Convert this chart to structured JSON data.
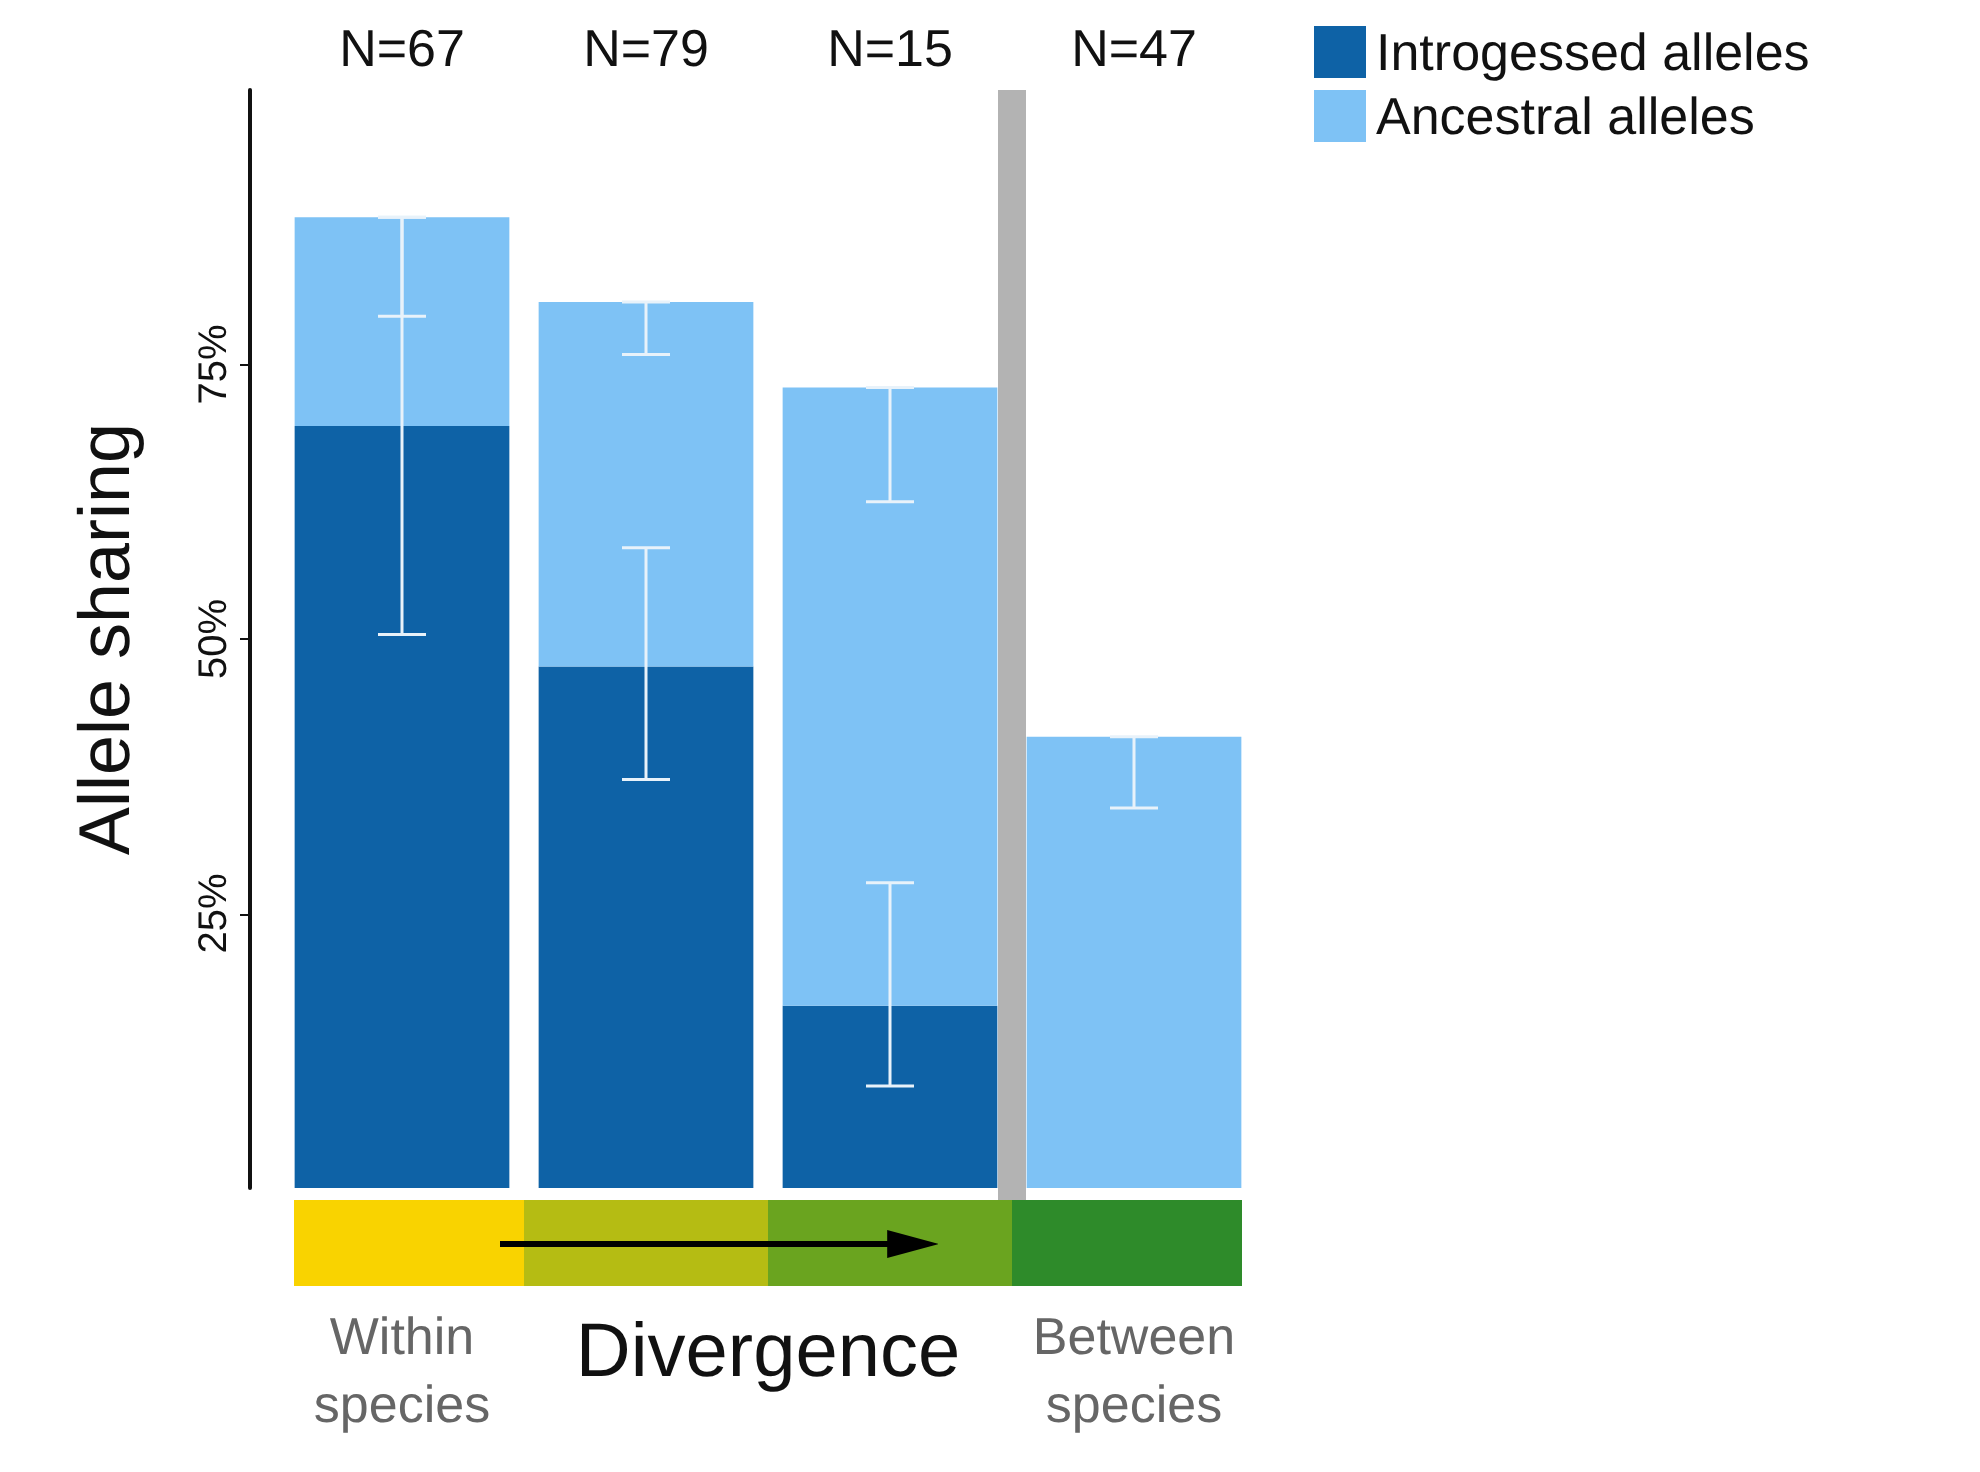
{
  "chart_data": {
    "type": "bar",
    "stacked": true,
    "categories": [
      "N=67",
      "N=79",
      "N=15",
      "N=47"
    ],
    "series": [
      {
        "name": "Introgessed alleles",
        "color": "#0e62a6",
        "values": [
          69.4,
          47.5,
          16.6,
          0
        ],
        "errors": [
          [
            50.4,
            88.4
          ],
          [
            37.2,
            58.3
          ],
          [
            9.3,
            27.8
          ],
          null
        ]
      },
      {
        "name": "Ancestral alleles",
        "color": "#7ec2f5",
        "values": [
          19.0,
          33.2,
          56.3,
          41.1
        ],
        "errors": [
          [
            79.4,
            88.4
          ],
          [
            75.9,
            80.7
          ],
          [
            62.5,
            72.9
          ],
          [
            34.6,
            41.1
          ]
        ]
      }
    ],
    "ylabel": "Allele sharing",
    "ylim": [
      0,
      100
    ],
    "yticks": [
      {
        "value": 25,
        "label": "25%"
      },
      {
        "value": 50,
        "label": "50%"
      },
      {
        "value": 75,
        "label": "75%"
      }
    ],
    "annotations": [
      "Within species",
      "Divergence",
      "Between species"
    ],
    "legend": "top right"
  }
}
